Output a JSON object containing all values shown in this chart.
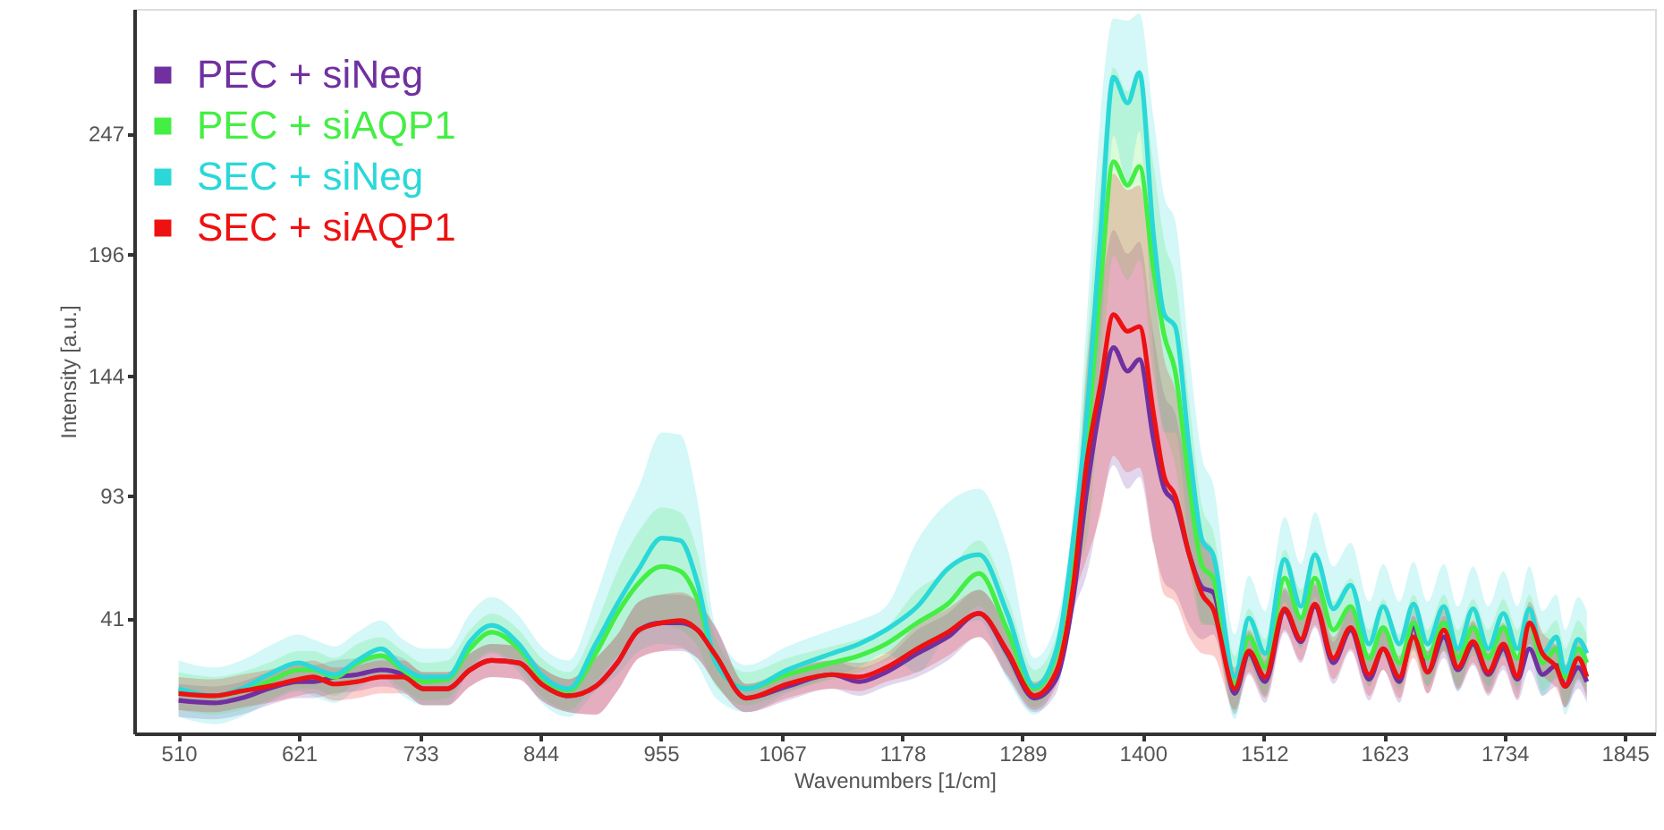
{
  "chart_data": {
    "type": "line",
    "xlabel": "Wavenumbers [1/cm]",
    "ylabel": "Intensity [a.u.]",
    "xlim": [
      469,
      1873
    ],
    "xticks": [
      510,
      621,
      733,
      844,
      955,
      1067,
      1178,
      1289,
      1400,
      1512,
      1623,
      1734,
      1845
    ],
    "ylim": [
      -8,
      300
    ],
    "yticks": [
      41,
      93,
      144,
      196,
      247
    ],
    "grid": false,
    "legend": "top left",
    "x": [
      510,
      543,
      568,
      593,
      621,
      634,
      654,
      675,
      697,
      717,
      736,
      758,
      779,
      799,
      824,
      845,
      870,
      895,
      915,
      935,
      956,
      973,
      989,
      1006,
      1034,
      1072,
      1113,
      1138,
      1163,
      1192,
      1220,
      1249,
      1275,
      1300,
      1320,
      1336,
      1348,
      1361,
      1373,
      1386,
      1397,
      1410,
      1420,
      1430,
      1443,
      1455,
      1465,
      1485,
      1498,
      1513,
      1531,
      1546,
      1559,
      1576,
      1592,
      1609,
      1622,
      1637,
      1650,
      1663,
      1678,
      1691,
      1705,
      1719,
      1733,
      1746,
      1757,
      1769,
      1782,
      1790,
      1802,
      1810
    ],
    "series": [
      {
        "name": "PEC + siNeg",
        "color": "#7030a0",
        "values": [
          6,
          5,
          7,
          11,
          14,
          14,
          16,
          17,
          19,
          17,
          11,
          11,
          19,
          23,
          22,
          13,
          8,
          12,
          22,
          36,
          39,
          39,
          36,
          25,
          7,
          12,
          17,
          14,
          18,
          26,
          33,
          43,
          26,
          7,
          15,
          50,
          94,
          132,
          156,
          146,
          151,
          117,
          96,
          90,
          68,
          54,
          52,
          9,
          26,
          14,
          44,
          31,
          46,
          22,
          36,
          15,
          28,
          14,
          37,
          18,
          33,
          19,
          30,
          17,
          28,
          15,
          28,
          17,
          21,
          12,
          20,
          14
        ],
        "lower": [
          -1,
          -2,
          0,
          4,
          7,
          7,
          9,
          10,
          12,
          10,
          4,
          4,
          12,
          16,
          15,
          6,
          1,
          0,
          10,
          24,
          27,
          27,
          24,
          13,
          1,
          6,
          11,
          8,
          12,
          16,
          23,
          33,
          16,
          1,
          9,
          44,
          59,
          87,
          106,
          96,
          101,
          72,
          56,
          52,
          38,
          32,
          34,
          0,
          17,
          5,
          35,
          22,
          37,
          13,
          27,
          6,
          19,
          5,
          28,
          9,
          24,
          10,
          21,
          8,
          19,
          6,
          19,
          8,
          12,
          3,
          11,
          5
        ],
        "upper": [
          13,
          12,
          14,
          18,
          21,
          21,
          23,
          24,
          26,
          24,
          18,
          18,
          26,
          30,
          29,
          20,
          15,
          24,
          34,
          48,
          51,
          51,
          48,
          37,
          13,
          18,
          23,
          20,
          24,
          36,
          43,
          53,
          36,
          13,
          21,
          56,
          129,
          177,
          206,
          196,
          201,
          162,
          136,
          128,
          98,
          76,
          70,
          18,
          35,
          23,
          53,
          40,
          55,
          31,
          45,
          24,
          37,
          23,
          46,
          27,
          42,
          28,
          39,
          26,
          37,
          24,
          37,
          26,
          30,
          21,
          29,
          23
        ]
      },
      {
        "name": "PEC + siAQP1",
        "color": "#44ee44",
        "values": [
          10,
          8,
          10,
          14,
          19,
          19,
          16,
          22,
          25,
          19,
          14,
          15,
          28,
          35,
          28,
          16,
          10,
          26,
          43,
          56,
          63,
          61,
          49,
          22,
          11,
          17,
          22,
          25,
          30,
          39,
          47,
          60,
          36,
          11,
          25,
          68,
          113,
          182,
          235,
          225,
          233,
          189,
          161,
          146,
          98,
          63,
          58,
          13,
          33,
          20,
          58,
          41,
          58,
          36,
          46,
          24,
          37,
          22,
          39,
          24,
          39,
          24,
          37,
          24,
          37,
          24,
          39,
          22,
          28,
          16,
          28,
          22
        ],
        "lower": [
          2,
          0,
          2,
          6,
          11,
          11,
          8,
          14,
          17,
          11,
          6,
          7,
          20,
          27,
          20,
          8,
          2,
          14,
          25,
          34,
          38,
          36,
          29,
          12,
          4,
          10,
          15,
          18,
          23,
          25,
          33,
          46,
          22,
          3,
          17,
          60,
          73,
          137,
          195,
          185,
          193,
          144,
          121,
          106,
          63,
          38,
          38,
          1,
          21,
          8,
          46,
          29,
          46,
          24,
          34,
          12,
          25,
          10,
          27,
          12,
          27,
          12,
          25,
          12,
          25,
          12,
          27,
          10,
          16,
          4,
          16,
          10
        ],
        "upper": [
          18,
          16,
          18,
          22,
          27,
          27,
          24,
          30,
          33,
          27,
          22,
          23,
          36,
          43,
          36,
          24,
          18,
          38,
          61,
          78,
          88,
          86,
          69,
          32,
          18,
          24,
          29,
          32,
          37,
          53,
          61,
          74,
          50,
          19,
          33,
          76,
          153,
          227,
          275,
          265,
          273,
          234,
          201,
          186,
          133,
          88,
          78,
          25,
          45,
          32,
          70,
          53,
          70,
          48,
          58,
          36,
          49,
          34,
          51,
          36,
          51,
          36,
          49,
          36,
          49,
          36,
          51,
          34,
          40,
          28,
          40,
          34
        ]
      },
      {
        "name": "SEC + siNeg",
        "color": "#2ad8d8",
        "values": [
          11,
          8,
          11,
          17,
          22,
          20,
          17,
          23,
          28,
          20,
          16,
          16,
          31,
          38,
          30,
          17,
          11,
          30,
          47,
          62,
          75,
          74,
          56,
          22,
          11,
          19,
          26,
          30,
          36,
          46,
          62,
          68,
          43,
          12,
          27,
          75,
          126,
          204,
          271,
          260,
          273,
          204,
          170,
          165,
          113,
          74,
          68,
          16,
          41,
          26,
          66,
          46,
          68,
          45,
          55,
          30,
          46,
          30,
          47,
          30,
          46,
          28,
          45,
          28,
          43,
          28,
          45,
          26,
          33,
          18,
          32,
          26
        ],
        "lower": [
          -1,
          -4,
          -1,
          5,
          10,
          8,
          5,
          11,
          16,
          8,
          4,
          4,
          19,
          26,
          18,
          5,
          -1,
          10,
          17,
          27,
          30,
          29,
          21,
          7,
          1,
          9,
          16,
          20,
          26,
          18,
          34,
          40,
          15,
          0,
          15,
          63,
          86,
          154,
          246,
          225,
          248,
          154,
          120,
          120,
          73,
          39,
          38,
          -2,
          23,
          8,
          48,
          28,
          50,
          27,
          37,
          12,
          28,
          12,
          29,
          12,
          28,
          10,
          27,
          10,
          25,
          10,
          27,
          8,
          15,
          0,
          14,
          8
        ],
        "upper": [
          23,
          20,
          23,
          29,
          34,
          32,
          29,
          35,
          40,
          32,
          28,
          28,
          43,
          50,
          42,
          29,
          23,
          50,
          77,
          97,
          120,
          119,
          91,
          37,
          21,
          29,
          36,
          40,
          46,
          74,
          90,
          96,
          71,
          24,
          39,
          87,
          166,
          254,
          296,
          295,
          298,
          254,
          220,
          210,
          153,
          109,
          98,
          34,
          59,
          44,
          84,
          64,
          86,
          63,
          73,
          48,
          64,
          48,
          65,
          48,
          64,
          46,
          63,
          46,
          61,
          46,
          63,
          44,
          51,
          36,
          50,
          44
        ]
      },
      {
        "name": "SEC + siAQP1",
        "color": "#ee1111",
        "values": [
          9,
          8,
          10,
          12,
          15,
          16,
          13,
          14,
          16,
          16,
          11,
          11,
          19,
          23,
          22,
          13,
          8,
          12,
          22,
          36,
          39,
          40,
          36,
          25,
          7,
          13,
          17,
          16,
          20,
          28,
          35,
          43,
          27,
          8,
          18,
          55,
          106,
          140,
          170,
          163,
          165,
          128,
          101,
          93,
          68,
          51,
          45,
          11,
          27,
          16,
          45,
          32,
          47,
          24,
          37,
          17,
          28,
          16,
          33,
          18,
          36,
          20,
          31,
          18,
          30,
          16,
          39,
          26,
          20,
          12,
          24,
          16
        ],
        "lower": [
          2,
          1,
          3,
          5,
          8,
          9,
          6,
          7,
          9,
          9,
          4,
          4,
          12,
          16,
          15,
          6,
          1,
          0,
          10,
          24,
          27,
          28,
          24,
          13,
          1,
          7,
          11,
          10,
          14,
          18,
          25,
          33,
          17,
          2,
          12,
          49,
          66,
          85,
          110,
          103,
          105,
          73,
          51,
          48,
          33,
          26,
          25,
          2,
          18,
          7,
          36,
          23,
          38,
          15,
          28,
          8,
          19,
          7,
          24,
          9,
          27,
          11,
          22,
          9,
          21,
          7,
          30,
          17,
          11,
          3,
          15,
          7
        ],
        "upper": [
          16,
          15,
          17,
          19,
          22,
          23,
          20,
          21,
          23,
          23,
          18,
          18,
          26,
          30,
          29,
          20,
          15,
          24,
          34,
          48,
          51,
          52,
          48,
          37,
          13,
          19,
          23,
          22,
          26,
          38,
          45,
          53,
          37,
          14,
          24,
          61,
          146,
          195,
          230,
          223,
          225,
          183,
          151,
          138,
          103,
          76,
          65,
          20,
          36,
          25,
          54,
          41,
          56,
          33,
          46,
          26,
          37,
          25,
          42,
          27,
          45,
          29,
          40,
          27,
          39,
          25,
          48,
          35,
          29,
          21,
          33,
          25
        ]
      }
    ]
  }
}
